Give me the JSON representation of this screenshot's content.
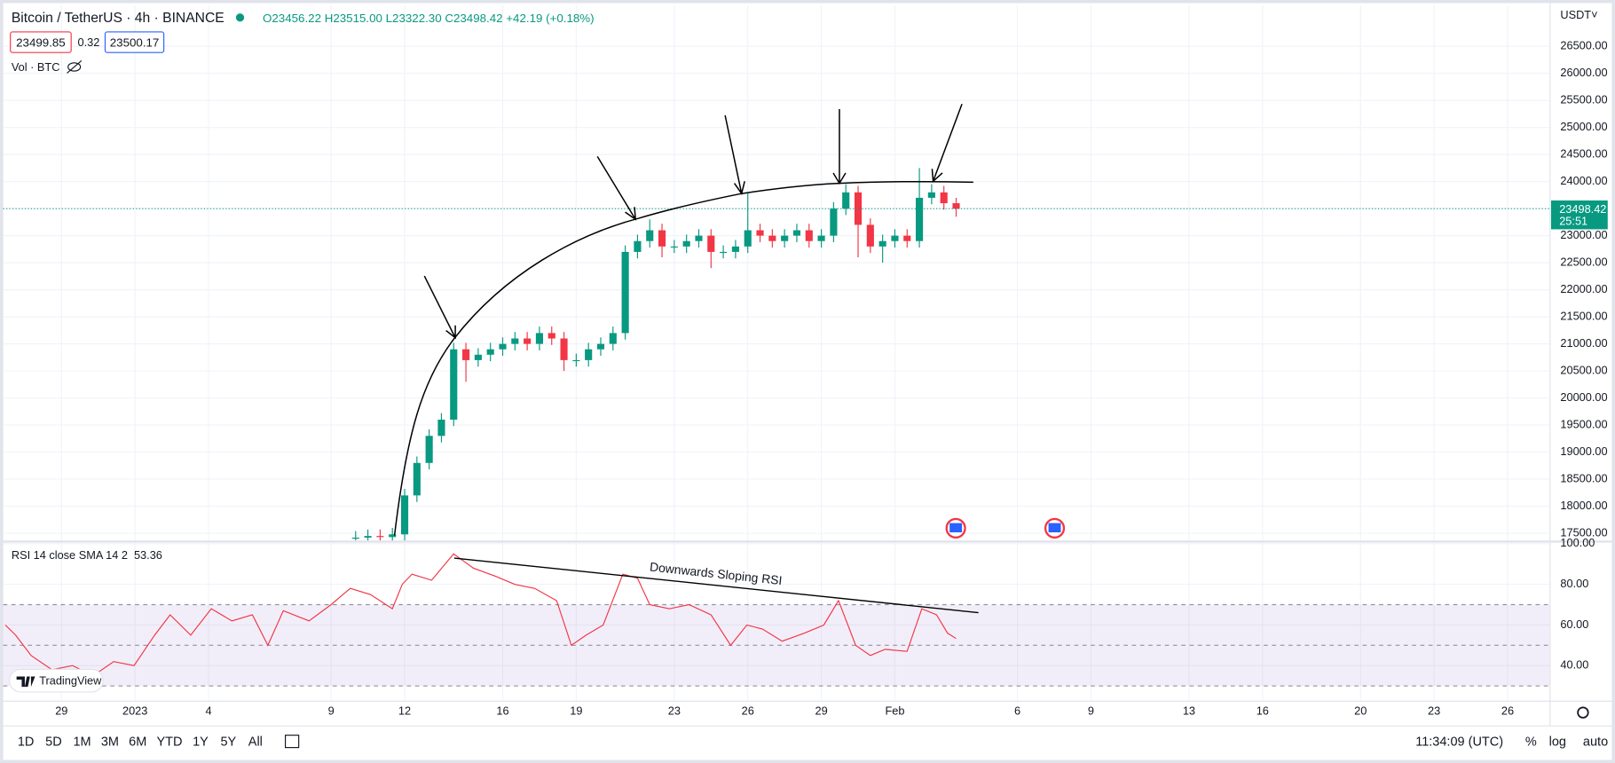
{
  "header": {
    "symbol": "Bitcoin / TetherUS · 4h · BINANCE",
    "ohlc": [
      "O23456.22",
      "H23515.00",
      "L23322.30",
      "C23498.42",
      "+42.19 (+0.18%)"
    ],
    "bid": "23499.85",
    "spread": "0.32",
    "ask": "23500.17",
    "volume": "Vol · BTC",
    "currency": "USDT˅"
  },
  "chart_data": [
    {
      "type": "candlestick",
      "up_color": "#089981",
      "down_color": "#f23645",
      "grid": true,
      "xlim": [
        -4.38,
        58.73
      ],
      "ylim": [
        17365,
        27260
      ],
      "xticks": [
        {
          "value": -2,
          "label": "29"
        },
        {
          "value": 1,
          "label": "2023"
        },
        {
          "value": 4,
          "label": "4"
        },
        {
          "value": 9,
          "label": "9"
        },
        {
          "value": 12,
          "label": "12"
        },
        {
          "value": 16,
          "label": "16"
        },
        {
          "value": 19,
          "label": "19"
        },
        {
          "value": 23,
          "label": "23"
        },
        {
          "value": 26,
          "label": "26"
        },
        {
          "value": 29,
          "label": "29"
        },
        {
          "value": 32,
          "label": "Feb"
        },
        {
          "value": 37,
          "label": "6"
        },
        {
          "value": 40,
          "label": "9"
        },
        {
          "value": 44,
          "label": "13"
        },
        {
          "value": 47,
          "label": "16"
        },
        {
          "value": 51,
          "label": "20"
        },
        {
          "value": 54,
          "label": "23"
        },
        {
          "value": 57,
          "label": "26"
        }
      ],
      "yticks": [
        {
          "value": 17500,
          "label": "17500.00"
        },
        {
          "value": 18000,
          "label": "18000.00"
        },
        {
          "value": 18500,
          "label": "18500.00"
        },
        {
          "value": 19000,
          "label": "19000.00"
        },
        {
          "value": 19500,
          "label": "19500.00"
        },
        {
          "value": 20000,
          "label": "20000.00"
        },
        {
          "value": 20500,
          "label": "20500.00"
        },
        {
          "value": 21000,
          "label": "21000.00"
        },
        {
          "value": 21500,
          "label": "21500.00"
        },
        {
          "value": 22000,
          "label": "22000.00"
        },
        {
          "value": 22500,
          "label": "22500.00"
        },
        {
          "value": 23000,
          "label": "23000.00"
        },
        {
          "value": 23500,
          "label": "23500.00"
        },
        {
          "value": 24000,
          "label": "24000.00"
        },
        {
          "value": 24500,
          "label": "24500.00"
        },
        {
          "value": 25000,
          "label": "25000.00"
        },
        {
          "value": 25500,
          "label": "25500.00"
        },
        {
          "value": 26000,
          "label": "26000.00"
        },
        {
          "value": 26500,
          "label": "26500.00"
        }
      ],
      "x": [
        10,
        10.5,
        11,
        11.5,
        12,
        12.5,
        13,
        13.5,
        14,
        14.5,
        15,
        15.5,
        16,
        16.5,
        17,
        17.5,
        18,
        18.5,
        19,
        19.5,
        20,
        20.5,
        21,
        21.5,
        22,
        22.5,
        23,
        23.5,
        24,
        24.5,
        25,
        25.5,
        26,
        26.5,
        27,
        27.5,
        28,
        28.5,
        29,
        29.5,
        30,
        30.5,
        31,
        31.5,
        32,
        32.5,
        33,
        33.5,
        34,
        34.5
      ],
      "open": [
        17400,
        17420,
        17450,
        17430,
        17480,
        18200,
        18800,
        19300,
        19600,
        20900,
        20700,
        20800,
        20900,
        21000,
        21100,
        21000,
        21200,
        21100,
        20700,
        20700,
        20900,
        21000,
        21200,
        22700,
        22900,
        23100,
        22800,
        22800,
        22900,
        23000,
        22700,
        22700,
        22800,
        23100,
        23000,
        22900,
        23000,
        23100,
        22900,
        23000,
        23500,
        23800,
        23200,
        22800,
        22900,
        23000,
        22900,
        23700,
        23800,
        23600
      ],
      "high": [
        17540,
        17570,
        17570,
        17600,
        18320,
        18920,
        19420,
        19720,
        21020,
        21020,
        20920,
        21020,
        21120,
        21220,
        21220,
        21320,
        21320,
        21220,
        20820,
        21020,
        21120,
        21320,
        22820,
        23020,
        23300,
        23220,
        22920,
        23020,
        23120,
        23120,
        22820,
        22920,
        23800,
        23220,
        23120,
        23120,
        23220,
        23220,
        23120,
        23620,
        23950,
        23920,
        23320,
        23020,
        23120,
        23120,
        24250,
        23950,
        23920,
        23700
      ],
      "low": [
        17280,
        17300,
        17310,
        17310,
        17360,
        18080,
        18680,
        19180,
        19480,
        20300,
        20580,
        20680,
        20780,
        20880,
        20880,
        20880,
        20980,
        20500,
        20580,
        20580,
        20780,
        20880,
        21080,
        22580,
        22780,
        22600,
        22680,
        22680,
        22780,
        22400,
        22580,
        22580,
        22680,
        22880,
        22780,
        22780,
        22880,
        22780,
        22780,
        22880,
        23380,
        22600,
        22680,
        22500,
        22780,
        22780,
        22780,
        23580,
        23480,
        23350
      ],
      "close": [
        17420,
        17450,
        17430,
        17480,
        18200,
        18800,
        19300,
        19600,
        20900,
        20700,
        20800,
        20900,
        21000,
        21100,
        21000,
        21200,
        21100,
        20700,
        20700,
        20900,
        21000,
        21200,
        22700,
        22900,
        23100,
        22800,
        22800,
        22900,
        23000,
        22700,
        22700,
        22800,
        23100,
        23000,
        22900,
        23000,
        23100,
        22900,
        23000,
        23500,
        23800,
        23200,
        22800,
        22900,
        23000,
        22900,
        23700,
        23800,
        23600,
        23498.42
      ],
      "last_price": 23498.42,
      "countdown": "25:51"
    },
    {
      "type": "line",
      "title": "RSI 14 close SMA 14 2",
      "current": 53.36,
      "color": "#f23645",
      "band_color": "#7e57c2",
      "ylim": [
        23,
        100.5
      ],
      "yticks": [
        {
          "value": 40,
          "label": "40.00"
        },
        {
          "value": 60,
          "label": "60.00"
        },
        {
          "value": 80,
          "label": "80.00"
        },
        {
          "value": 100,
          "label": "100.00"
        }
      ],
      "bands": [
        30,
        50,
        70
      ],
      "annotation": "Downwards Sloping RSI",
      "x": [
        -4.29,
        -3.87,
        -3.24,
        -2.39,
        -1.55,
        -0.71,
        0.13,
        0.96,
        1.8,
        2.43,
        3.27,
        4.11,
        4.95,
        5.79,
        6.42,
        7.05,
        8.1,
        9.0,
        9.78,
        10.6,
        11.5,
        11.9,
        12.3,
        13.1,
        14.0,
        14.8,
        15.7,
        16.5,
        17.3,
        18.2,
        18.8,
        19.4,
        20.1,
        20.9,
        21.5,
        22.0,
        22.8,
        23.6,
        24.5,
        25.3,
        25.96,
        26.6,
        27.4,
        28.3,
        29.1,
        29.7,
        30.4,
        31.0,
        31.6,
        32.5,
        33.1,
        33.7,
        34.15,
        34.5
      ],
      "values": [
        60,
        55,
        45,
        38,
        40,
        35,
        42,
        40,
        55,
        65,
        55,
        68,
        62,
        65,
        50,
        67,
        62,
        70,
        78,
        75,
        68,
        80,
        85,
        82,
        95,
        88,
        84,
        80,
        78,
        72,
        50,
        55,
        60,
        85,
        83,
        70,
        68,
        70,
        65,
        50,
        60,
        58,
        52,
        56,
        60,
        72,
        50,
        45,
        48,
        47,
        68,
        65,
        56,
        53.36
      ]
    }
  ],
  "toolbar": {
    "ranges": [
      "1D",
      "5D",
      "1M",
      "3M",
      "6M",
      "YTD",
      "1Y",
      "5Y",
      "All"
    ],
    "time": "11:34:09 (UTC)",
    "options": [
      "%",
      "log",
      "auto"
    ]
  },
  "watermark": "TradingView"
}
